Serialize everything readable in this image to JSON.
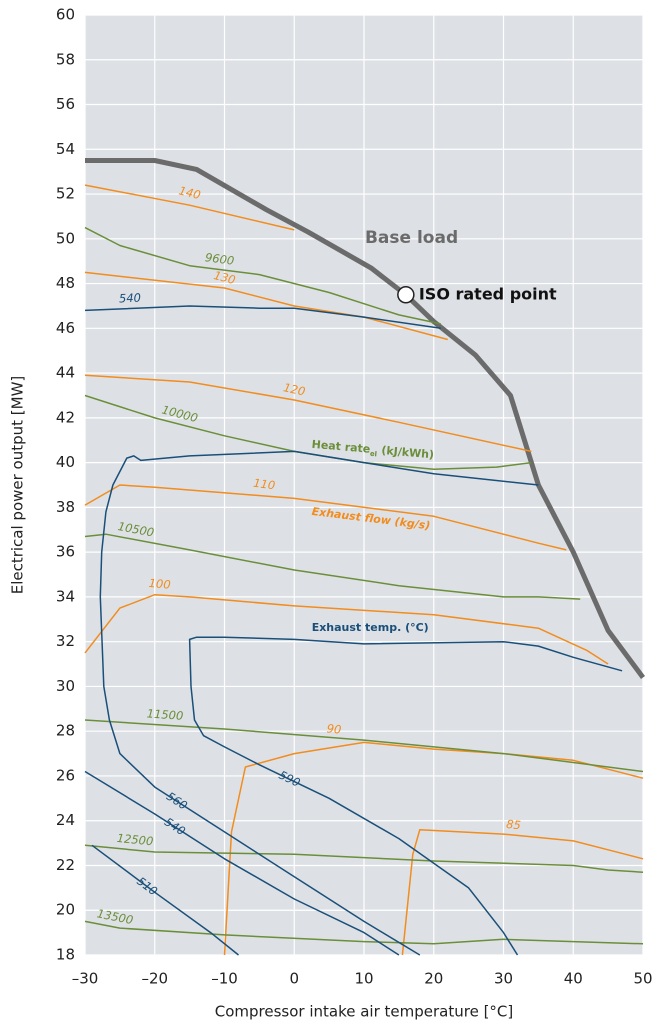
{
  "chart_data": {
    "type": "line",
    "xlabel": "Compressor intake air temperature [°C]",
    "ylabel": "Electrical power output [MW]",
    "xlim": [
      -30,
      50
    ],
    "ylim": [
      18,
      60
    ],
    "xticks": [
      {
        "value": -30,
        "label": "–30"
      },
      {
        "value": -20,
        "label": "–20"
      },
      {
        "value": -10,
        "label": "–10"
      },
      0,
      10,
      20,
      30,
      40,
      50
    ],
    "yticks": [
      18,
      20,
      22,
      24,
      26,
      28,
      30,
      32,
      34,
      36,
      38,
      40,
      42,
      44,
      46,
      48,
      50,
      52,
      54,
      56,
      58,
      60
    ],
    "grid": true,
    "series": [
      {
        "name": "Base load",
        "color": "#6b6b6b",
        "x": [
          -30,
          -20,
          -14,
          -4,
          2,
          11,
          16,
          20,
          26,
          31,
          35,
          40,
          45,
          50
        ],
        "values": [
          53.5,
          53.5,
          53.1,
          51.3,
          50.3,
          48.7,
          47.5,
          46.3,
          44.8,
          43.0,
          39.0,
          36.0,
          32.5,
          30.4
        ]
      },
      {
        "name": "140",
        "color": "#f28c1e",
        "x": [
          -30,
          -15,
          0
        ],
        "values": [
          52.4,
          51.5,
          50.4
        ]
      },
      {
        "name": "130",
        "color": "#f28c1e",
        "x": [
          -30,
          -10,
          0,
          10,
          22
        ],
        "values": [
          48.5,
          47.8,
          47.0,
          46.5,
          45.5
        ]
      },
      {
        "name": "120",
        "color": "#f28c1e",
        "x": [
          -30,
          -15,
          0,
          15,
          34
        ],
        "values": [
          43.9,
          43.6,
          42.8,
          41.8,
          40.5
        ]
      },
      {
        "name": "110",
        "color": "#f28c1e",
        "x": [
          -30,
          -25,
          -20,
          0,
          20,
          35,
          39
        ],
        "values": [
          38.1,
          39.0,
          38.9,
          38.4,
          37.6,
          36.4,
          36.1
        ]
      },
      {
        "name": "100",
        "color": "#f28c1e",
        "x": [
          -30,
          -25,
          -20,
          -15,
          0,
          20,
          35,
          42,
          45
        ],
        "values": [
          31.5,
          33.5,
          34.1,
          34.0,
          33.6,
          33.2,
          32.6,
          31.6,
          31.0
        ]
      },
      {
        "name": "90",
        "color": "#f28c1e",
        "x": [
          -10,
          -9,
          -7,
          0,
          10,
          20,
          30,
          40,
          45,
          50
        ],
        "values": [
          18.0,
          23.5,
          26.4,
          27.0,
          27.5,
          27.2,
          27.0,
          26.7,
          26.3,
          25.9
        ]
      },
      {
        "name": "85",
        "color": "#f28c1e",
        "x": [
          15.5,
          17,
          18,
          30,
          40,
          45,
          50
        ],
        "values": [
          18.0,
          22.5,
          23.6,
          23.4,
          23.1,
          22.7,
          22.3
        ]
      },
      {
        "name": "9600",
        "color": "#6b8e3a",
        "x": [
          -30,
          -25,
          -15,
          -5,
          5,
          15,
          21
        ],
        "values": [
          50.5,
          49.7,
          48.8,
          48.4,
          47.6,
          46.6,
          46.2
        ]
      },
      {
        "name": "10000",
        "color": "#6b8e3a",
        "x": [
          -30,
          -20,
          -10,
          0,
          10,
          20,
          29,
          34
        ],
        "values": [
          43.0,
          42.0,
          41.2,
          40.5,
          40.0,
          39.7,
          39.8,
          40.0
        ]
      },
      {
        "name": "10500",
        "color": "#6b8e3a",
        "x": [
          -30,
          -27,
          -15,
          0,
          15,
          30,
          35,
          41
        ],
        "values": [
          36.7,
          36.8,
          36.1,
          35.2,
          34.5,
          34.0,
          34.0,
          33.9
        ]
      },
      {
        "name": "11500",
        "color": "#6b8e3a",
        "x": [
          -30,
          -10,
          10,
          30,
          40,
          50
        ],
        "values": [
          28.5,
          28.1,
          27.6,
          27.0,
          26.6,
          26.2
        ]
      },
      {
        "name": "12500",
        "color": "#6b8e3a",
        "x": [
          -30,
          -20,
          0,
          20,
          40,
          45,
          50
        ],
        "values": [
          22.9,
          22.6,
          22.5,
          22.2,
          22.0,
          21.8,
          21.7
        ]
      },
      {
        "name": "13500",
        "color": "#6b8e3a",
        "x": [
          -30,
          -25,
          -10,
          10,
          20,
          30,
          40,
          50
        ],
        "values": [
          19.5,
          19.2,
          18.9,
          18.6,
          18.5,
          18.7,
          18.6,
          18.5
        ]
      },
      {
        "name": "540",
        "color": "#1a4f7a",
        "x": [
          -30,
          -15,
          -5,
          0,
          10,
          21
        ],
        "values": [
          46.8,
          47.0,
          46.9,
          46.9,
          46.5,
          46.0
        ]
      },
      {
        "name": "560",
        "color": "#1a4f7a",
        "x": [
          35,
          20,
          10,
          0,
          -15,
          -22,
          -23,
          -24,
          -26,
          -27,
          -27.6,
          -27.8,
          -27.3,
          -26.5,
          -25,
          -20,
          -10,
          0,
          10,
          18
        ],
        "values": [
          39.0,
          39.5,
          40.0,
          40.5,
          40.3,
          40.1,
          40.3,
          40.2,
          39.0,
          37.8,
          36.0,
          34.0,
          30.0,
          28.5,
          27.0,
          25.5,
          23.5,
          21.5,
          19.5,
          18.0
        ]
      },
      {
        "name": "590",
        "color": "#1a4f7a",
        "x": [
          47,
          40,
          35,
          30,
          10,
          0,
          -10,
          -14,
          -15,
          -14.8,
          -14.3,
          -13,
          -10,
          -5,
          5,
          15,
          25,
          30,
          32
        ],
        "values": [
          30.7,
          31.3,
          31.8,
          32.0,
          31.9,
          32.1,
          32.2,
          32.2,
          32.1,
          30.0,
          28.5,
          27.8,
          27.3,
          26.5,
          25.0,
          23.2,
          21.0,
          19.0,
          18.0
        ]
      },
      {
        "name": "540",
        "color": "#1a4f7a",
        "x": [
          -30,
          -20,
          -10,
          0,
          10,
          15
        ],
        "values": [
          26.2,
          24.3,
          22.3,
          20.5,
          19.0,
          18.0
        ]
      },
      {
        "name": "510",
        "color": "#1a4f7a",
        "x": [
          -29,
          -20,
          -12,
          -8
        ],
        "values": [
          22.9,
          20.8,
          19.0,
          18.0
        ]
      }
    ],
    "iso_point": {
      "label": "ISO rated point",
      "x": 16,
      "y": 47.5
    },
    "annotations": {
      "heat_rate": {
        "text": "Heat rate",
        "sub": "el",
        "unit": "(kJ/kWh)"
      },
      "exhaust_flow": "Exhaust flow (kg/s)",
      "exhaust_temp": "Exhaust temp. (°C)"
    }
  }
}
